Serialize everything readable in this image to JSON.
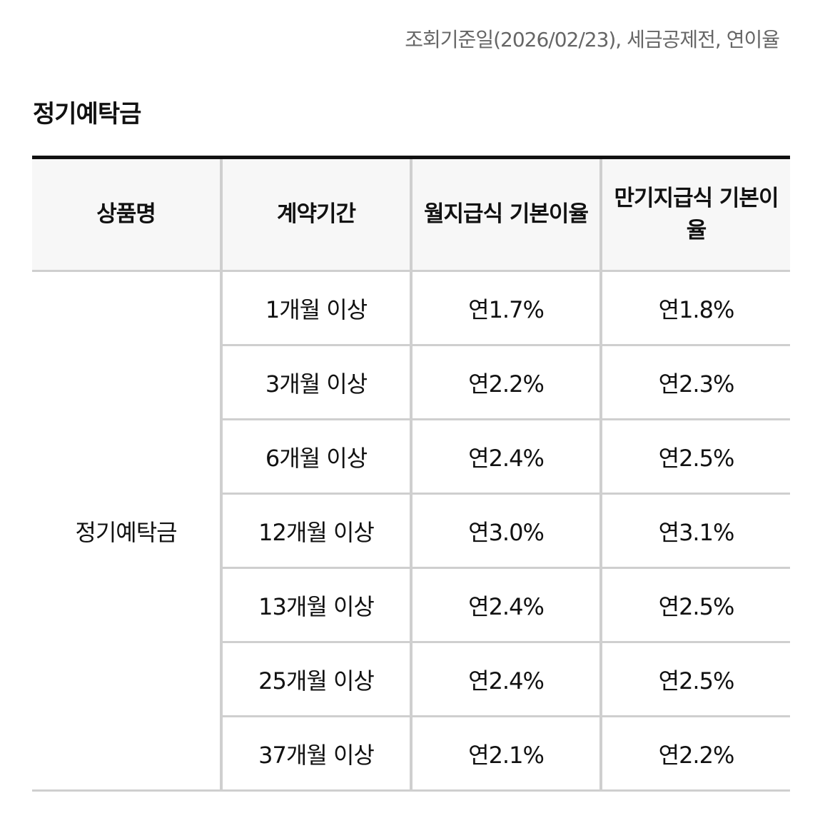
{
  "basis_note": "조회기준일(2026/02/23), 세금공제전, 연이율",
  "section_title": "정기예탁금",
  "table": {
    "headers": {
      "product": "상품명",
      "term": "계약기간",
      "monthly_rate": "월지급식 기본이율",
      "maturity_rate": "만기지급식 기본이율"
    },
    "product_name": "정기예탁금",
    "rows": [
      {
        "term": "1개월 이상",
        "monthly_rate": "연1.7%",
        "maturity_rate": "연1.8%"
      },
      {
        "term": "3개월 이상",
        "monthly_rate": "연2.2%",
        "maturity_rate": "연2.3%"
      },
      {
        "term": "6개월 이상",
        "monthly_rate": "연2.4%",
        "maturity_rate": "연2.5%"
      },
      {
        "term": "12개월 이상",
        "monthly_rate": "연3.0%",
        "maturity_rate": "연3.1%"
      },
      {
        "term": "13개월 이상",
        "monthly_rate": "연2.4%",
        "maturity_rate": "연2.5%"
      },
      {
        "term": "25개월 이상",
        "monthly_rate": "연2.4%",
        "maturity_rate": "연2.5%"
      },
      {
        "term": "37개월 이상",
        "monthly_rate": "연2.1%",
        "maturity_rate": "연2.2%"
      }
    ]
  },
  "colors": {
    "text": "#111111",
    "muted_text": "#666666",
    "header_background": "#f7f7f7",
    "border": "#cfcfcf",
    "top_rule": "#111111"
  }
}
